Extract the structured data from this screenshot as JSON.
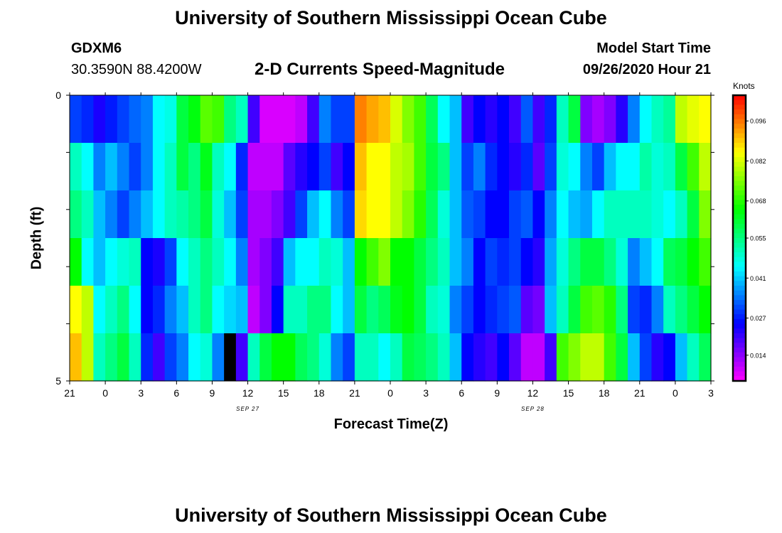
{
  "page": {
    "title_top": "University of Southern Mississippi Ocean Cube",
    "title_bottom": "University of Southern Mississippi Ocean Cube",
    "station_id": "GDXM6",
    "station_coords": "30.3590N 88.4200W",
    "chart_title": "2-D Currents Speed-Magnitude",
    "model_label": "Model Start Time",
    "model_time": "09/26/2020 Hour 21"
  },
  "chart_data": {
    "type": "heatmap",
    "title": "2-D Currents Speed-Magnitude",
    "xlabel": "Forecast Time(Z)",
    "ylabel": "Depth (ft)",
    "x_tick_labels": [
      "21",
      "0",
      "3",
      "6",
      "9",
      "12",
      "15",
      "18",
      "21",
      "0",
      "3",
      "6",
      "9",
      "12",
      "15",
      "18",
      "21",
      "0",
      "3"
    ],
    "x_date_labels": [
      {
        "label": "SEP 27",
        "at_tick": 5
      },
      {
        "label": "SEP 28",
        "at_tick": 13
      }
    ],
    "y_tick_labels": [
      "0",
      "5"
    ],
    "ylim": [
      0,
      5
    ],
    "y_tick_count": 6,
    "depth_layers": 6,
    "forecast_hours": 54,
    "colorbar": {
      "label": "Knots",
      "range": [
        0.005,
        0.105
      ],
      "tick_labels": [
        "0.096",
        "0.082",
        "0.068",
        "0.055",
        "0.041",
        "0.027",
        "0.014"
      ],
      "tick_values": [
        0.096,
        0.082,
        0.068,
        0.055,
        0.041,
        0.027,
        0.014
      ]
    },
    "speed_knots": [
      [
        0.03,
        0.028,
        0.023,
        0.027,
        0.03,
        0.033,
        0.035,
        0.045,
        0.047,
        0.06,
        0.064,
        0.072,
        0.07,
        0.055,
        0.05,
        0.02,
        0.008,
        0.008,
        0.008,
        0.01,
        0.02,
        0.035,
        0.03,
        0.03,
        0.095,
        0.092,
        0.09,
        0.082,
        0.075,
        0.07,
        0.058,
        0.045,
        0.04,
        0.02,
        0.025,
        0.022,
        0.025,
        0.02,
        0.032,
        0.02,
        0.028,
        0.05,
        0.06,
        0.015,
        0.012,
        0.015,
        0.022,
        0.035,
        0.045,
        0.05,
        0.053,
        0.08,
        0.083,
        0.085
      ],
      [
        0.05,
        0.045,
        0.035,
        0.04,
        0.035,
        0.03,
        0.035,
        0.045,
        0.05,
        0.06,
        0.055,
        0.063,
        0.05,
        0.045,
        0.028,
        0.01,
        0.01,
        0.01,
        0.018,
        0.022,
        0.025,
        0.03,
        0.02,
        0.025,
        0.09,
        0.085,
        0.085,
        0.08,
        0.078,
        0.07,
        0.06,
        0.055,
        0.04,
        0.03,
        0.035,
        0.028,
        0.025,
        0.022,
        0.028,
        0.018,
        0.03,
        0.048,
        0.045,
        0.035,
        0.03,
        0.04,
        0.045,
        0.045,
        0.052,
        0.048,
        0.05,
        0.06,
        0.07,
        0.08
      ],
      [
        0.055,
        0.05,
        0.04,
        0.035,
        0.03,
        0.035,
        0.04,
        0.045,
        0.05,
        0.052,
        0.055,
        0.06,
        0.048,
        0.04,
        0.03,
        0.012,
        0.012,
        0.015,
        0.02,
        0.03,
        0.04,
        0.045,
        0.035,
        0.03,
        0.088,
        0.085,
        0.085,
        0.08,
        0.075,
        0.068,
        0.058,
        0.048,
        0.04,
        0.032,
        0.03,
        0.025,
        0.025,
        0.03,
        0.032,
        0.025,
        0.035,
        0.045,
        0.04,
        0.038,
        0.045,
        0.05,
        0.05,
        0.05,
        0.05,
        0.048,
        0.045,
        0.05,
        0.06,
        0.075
      ],
      [
        0.065,
        0.045,
        0.04,
        0.045,
        0.048,
        0.05,
        0.025,
        0.023,
        0.03,
        0.045,
        0.05,
        0.055,
        0.05,
        0.045,
        0.035,
        0.012,
        0.015,
        0.02,
        0.04,
        0.045,
        0.045,
        0.05,
        0.048,
        0.04,
        0.065,
        0.07,
        0.075,
        0.065,
        0.065,
        0.06,
        0.055,
        0.05,
        0.04,
        0.035,
        0.025,
        0.03,
        0.028,
        0.03,
        0.025,
        0.022,
        0.038,
        0.048,
        0.055,
        0.06,
        0.06,
        0.055,
        0.048,
        0.035,
        0.04,
        0.045,
        0.058,
        0.06,
        0.065,
        0.07
      ],
      [
        0.085,
        0.08,
        0.045,
        0.05,
        0.055,
        0.045,
        0.025,
        0.028,
        0.035,
        0.04,
        0.05,
        0.055,
        0.045,
        0.042,
        0.04,
        0.01,
        0.015,
        0.025,
        0.05,
        0.05,
        0.055,
        0.055,
        0.045,
        0.04,
        0.06,
        0.055,
        0.058,
        0.063,
        0.065,
        0.06,
        0.05,
        0.048,
        0.035,
        0.03,
        0.025,
        0.028,
        0.03,
        0.032,
        0.018,
        0.016,
        0.04,
        0.05,
        0.06,
        0.07,
        0.072,
        0.068,
        0.055,
        0.03,
        0.028,
        0.035,
        0.05,
        0.055,
        0.06,
        0.065
      ],
      [
        0.09,
        0.08,
        0.05,
        0.055,
        0.06,
        0.05,
        0.028,
        0.02,
        0.03,
        0.035,
        0.045,
        0.048,
        0.035,
        0.0,
        0.02,
        0.05,
        0.06,
        0.065,
        0.065,
        0.058,
        0.055,
        0.048,
        0.035,
        0.03,
        0.05,
        0.05,
        0.045,
        0.05,
        0.06,
        0.058,
        0.055,
        0.05,
        0.04,
        0.025,
        0.022,
        0.02,
        0.025,
        0.018,
        0.01,
        0.01,
        0.02,
        0.07,
        0.075,
        0.08,
        0.08,
        0.07,
        0.06,
        0.04,
        0.03,
        0.022,
        0.025,
        0.04,
        0.05,
        0.058
      ]
    ]
  }
}
